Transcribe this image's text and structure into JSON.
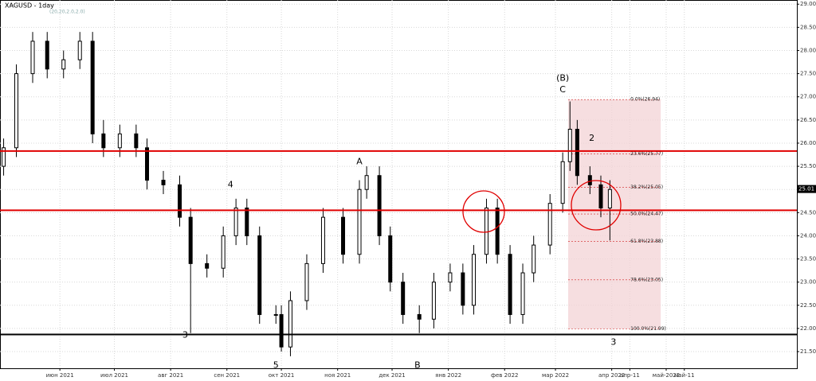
{
  "chart_data": {
    "type": "candlestick",
    "title": "XAGUSD - 1day",
    "subtitle": "(20,20,2.0,2.0)",
    "x": [
      0,
      7,
      16,
      24,
      33,
      42,
      49,
      55,
      64,
      73,
      79,
      88,
      97,
      103,
      112,
      121,
      128,
      134,
      141,
      150,
      153,
      158,
      167,
      176,
      187,
      196,
      200,
      207,
      213,
      220,
      229,
      237,
      246,
      253,
      259,
      266,
      272,
      279,
      286,
      292,
      301,
      308,
      312,
      316,
      323,
      329,
      334
    ],
    "open": [
      25.5,
      25.9,
      27.5,
      28.2,
      27.6,
      27.8,
      28.2,
      26.2,
      25.9,
      26.2,
      25.9,
      25.2,
      25.1,
      24.4,
      23.4,
      23.3,
      24.0,
      24.6,
      24.0,
      22.3,
      22.3,
      21.6,
      22.6,
      23.4,
      24.4,
      23.6,
      25.0,
      25.3,
      24.0,
      23.0,
      22.3,
      22.2,
      23.0,
      23.2,
      22.5,
      23.6,
      24.6,
      23.6,
      22.3,
      23.2,
      23.8,
      24.7,
      25.6,
      26.3,
      25.3,
      25.1,
      24.6
    ],
    "high": [
      26.1,
      27.7,
      28.4,
      28.4,
      28.0,
      28.4,
      28.4,
      26.5,
      26.4,
      26.4,
      26.1,
      25.4,
      25.3,
      24.6,
      23.6,
      24.2,
      24.8,
      24.8,
      24.2,
      22.5,
      22.5,
      22.8,
      23.6,
      24.6,
      24.6,
      25.2,
      25.5,
      25.5,
      24.2,
      23.2,
      22.5,
      23.2,
      23.4,
      23.4,
      23.8,
      24.8,
      24.8,
      23.8,
      23.4,
      24.0,
      24.9,
      25.8,
      26.9,
      26.5,
      25.5,
      25.3,
      25.2
    ],
    "low": [
      25.3,
      25.7,
      27.3,
      27.4,
      27.4,
      27.6,
      26.0,
      25.7,
      25.7,
      25.7,
      25.0,
      24.9,
      24.2,
      21.9,
      23.1,
      23.1,
      23.8,
      23.8,
      22.1,
      22.1,
      21.5,
      21.4,
      22.4,
      23.2,
      23.4,
      23.4,
      24.8,
      23.8,
      22.8,
      22.1,
      21.9,
      22.0,
      22.8,
      22.3,
      22.3,
      23.4,
      23.4,
      22.1,
      22.1,
      23.0,
      23.6,
      24.5,
      25.4,
      25.1,
      24.9,
      24.4,
      23.9
    ],
    "close": [
      25.9,
      27.5,
      28.2,
      27.6,
      27.8,
      28.2,
      26.2,
      25.9,
      26.2,
      25.9,
      25.2,
      25.1,
      24.4,
      23.4,
      23.3,
      24.0,
      24.6,
      24.0,
      22.3,
      22.3,
      21.6,
      22.6,
      23.4,
      24.4,
      23.6,
      25.0,
      25.3,
      24.0,
      23.0,
      22.3,
      22.2,
      23.0,
      23.2,
      22.5,
      23.6,
      24.6,
      23.6,
      22.3,
      23.2,
      23.8,
      24.7,
      25.6,
      26.3,
      25.3,
      25.1,
      24.6,
      25.0
    ],
    "up_color": "#000000",
    "down_color": "#000000",
    "xlim": [
      -2,
      437
    ],
    "ylim": [
      21.14,
      29.09
    ],
    "xticks": [
      {
        "value": 31,
        "label": "июн 2021"
      },
      {
        "value": 61,
        "label": "июл 2021"
      },
      {
        "value": 92,
        "label": "авг 2021"
      },
      {
        "value": 123,
        "label": "сен 2021"
      },
      {
        "value": 153,
        "label": "окт 2021"
      },
      {
        "value": 184,
        "label": "ноя 2021"
      },
      {
        "value": 214,
        "label": "дек 2021"
      },
      {
        "value": 245,
        "label": "янв 2022"
      },
      {
        "value": 276,
        "label": "фев 2022"
      },
      {
        "value": 304,
        "label": "мар 2022"
      },
      {
        "value": 335,
        "label": "апр 2022"
      },
      {
        "value": 345,
        "label": "апр-11"
      },
      {
        "value": 365,
        "label": "май-2022"
      },
      {
        "value": 375,
        "label": "май-11"
      }
    ],
    "yticks": [
      {
        "value": 29,
        "label": "29.00"
      },
      {
        "value": 28.5,
        "label": "28.50"
      },
      {
        "value": 28,
        "label": "28.00"
      },
      {
        "value": 27.5,
        "label": "27.50"
      },
      {
        "value": 27,
        "label": "27.00"
      },
      {
        "value": 26.5,
        "label": "26.50"
      },
      {
        "value": 26,
        "label": "26.00"
      },
      {
        "value": 25.5,
        "label": "25.50"
      },
      {
        "value": 25,
        "label": "25.00"
      },
      {
        "value": 24.5,
        "label": "24.50"
      },
      {
        "value": 24,
        "label": "24.00"
      },
      {
        "value": 23.5,
        "label": "23.50"
      },
      {
        "value": 23,
        "label": "23.00"
      },
      {
        "value": 22.5,
        "label": "22.50"
      },
      {
        "value": 22,
        "label": "22.00"
      },
      {
        "value": 21.5,
        "label": "21.50"
      }
    ],
    "grid": true,
    "current_price": {
      "value": 25.01,
      "label": "25.01"
    },
    "levels": [
      {
        "value": 25.83,
        "color": "#e00000"
      },
      {
        "value": 24.55,
        "color": "#e00000"
      },
      {
        "value": 21.87,
        "color": "#000000"
      }
    ],
    "fib_range": [
      311,
      362
    ],
    "fib_levels": [
      {
        "value": 26.94,
        "label": "0.0%(26.94)"
      },
      {
        "value": 25.77,
        "label": "23.6%(25.77)"
      },
      {
        "value": 25.05,
        "label": "38.2%(25.05)"
      },
      {
        "value": 24.47,
        "label": "50.0%(24.47)"
      },
      {
        "value": 23.88,
        "label": "61.8%(23.88)"
      },
      {
        "value": 23.05,
        "label": "78.6%(23.05)"
      },
      {
        "value": 21.99,
        "label": "100.0%(21.99)"
      }
    ],
    "waves": [
      {
        "label": "(B)",
        "x": 308,
        "y": 27.4
      },
      {
        "label": "C",
        "x": 308,
        "y": 27.15
      },
      {
        "label": "A",
        "x": 196,
        "y": 25.6
      },
      {
        "label": "B",
        "x": 228,
        "y": 21.2
      },
      {
        "label": "4",
        "x": 125,
        "y": 25.1
      },
      {
        "label": "5",
        "x": 150,
        "y": 21.2
      },
      {
        "label": "3",
        "x": 100,
        "y": 21.85
      },
      {
        "label": "2",
        "x": 324,
        "y": 26.1
      },
      {
        "label": "3",
        "x": 336,
        "y": 21.7
      }
    ]
  }
}
